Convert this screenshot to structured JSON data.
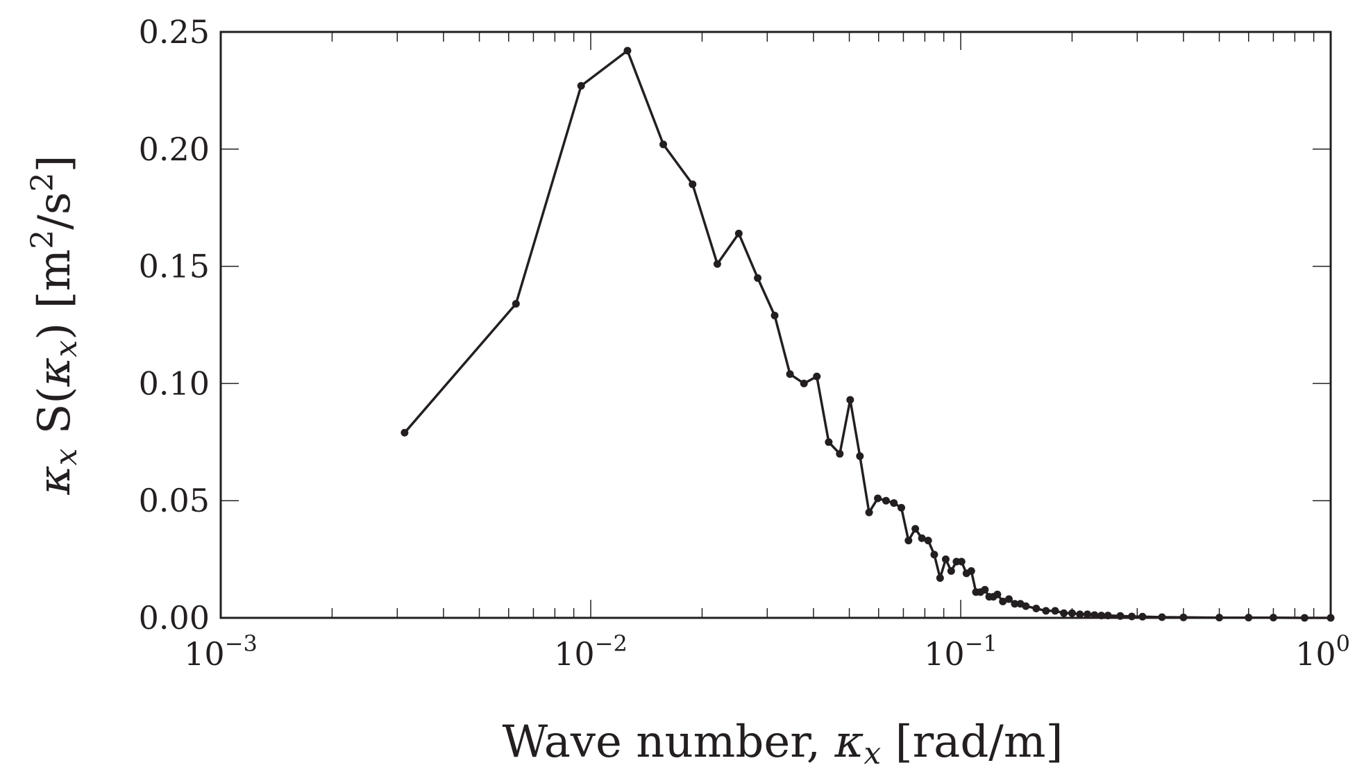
{
  "chart_data": {
    "type": "line",
    "x_scale": "log",
    "xlim": [
      0.001,
      1
    ],
    "ylim": [
      0,
      0.25
    ],
    "xlabel": {
      "main": "Wave number, ",
      "symbol": "κ",
      "sub": "x",
      "unit": " [rad/m]"
    },
    "ylabel": {
      "sym1": "κ",
      "sub1": "x",
      "mid": " S(",
      "sym2": "κ",
      "sub2": "x",
      "unit": ") [m",
      "sup": "2",
      "unit2": "/s",
      "sup2": "2",
      "close": "]"
    },
    "x_ticks": [
      {
        "base": "10",
        "exp": "−3",
        "value": 0.001
      },
      {
        "base": "10",
        "exp": "−2",
        "value": 0.01
      },
      {
        "base": "10",
        "exp": "−1",
        "value": 0.1
      },
      {
        "base": "10",
        "exp": "0",
        "value": 1
      }
    ],
    "y_ticks": [
      {
        "label": "0.00",
        "value": 0.0
      },
      {
        "label": "0.05",
        "value": 0.05
      },
      {
        "label": "0.10",
        "value": 0.1
      },
      {
        "label": "0.15",
        "value": 0.15
      },
      {
        "label": "0.20",
        "value": 0.2
      },
      {
        "label": "0.25",
        "value": 0.25
      }
    ],
    "grid": false,
    "line_color": "#231f20",
    "series": [
      {
        "x": [
          0.00314,
          0.00628,
          0.00942,
          0.01257,
          0.01571,
          0.01885,
          0.02199,
          0.02513,
          0.02827,
          0.03142,
          0.03456,
          0.0377,
          0.04084,
          0.04398,
          0.04712,
          0.05027,
          0.05341,
          0.05655,
          0.05969,
          0.06283,
          0.06597,
          0.06912,
          0.07226,
          0.0754,
          0.07854,
          0.08168,
          0.08482,
          0.08796,
          0.09111,
          0.09425,
          0.09739,
          0.10053,
          0.10367,
          0.10681,
          0.10996,
          0.1131,
          0.11624,
          0.11938,
          0.12252,
          0.12566,
          0.13,
          0.135,
          0.14,
          0.145,
          0.15,
          0.16,
          0.17,
          0.18,
          0.19,
          0.2,
          0.21,
          0.22,
          0.23,
          0.24,
          0.25,
          0.27,
          0.29,
          0.31,
          0.35,
          0.4,
          0.5,
          0.6,
          0.7,
          0.85,
          1.0
        ],
        "y": [
          0.079,
          0.134,
          0.227,
          0.242,
          0.202,
          0.185,
          0.151,
          0.164,
          0.145,
          0.129,
          0.104,
          0.1,
          0.103,
          0.075,
          0.07,
          0.093,
          0.069,
          0.045,
          0.051,
          0.05,
          0.049,
          0.047,
          0.033,
          0.038,
          0.034,
          0.033,
          0.027,
          0.017,
          0.025,
          0.02,
          0.024,
          0.024,
          0.019,
          0.02,
          0.011,
          0.011,
          0.012,
          0.009,
          0.009,
          0.01,
          0.007,
          0.008,
          0.006,
          0.006,
          0.005,
          0.004,
          0.003,
          0.003,
          0.002,
          0.002,
          0.0015,
          0.0015,
          0.0012,
          0.001,
          0.001,
          0.0008,
          0.0006,
          0.0005,
          0.0003,
          0.0002,
          0.0001,
          0.0001,
          0.0001,
          0.0,
          0.0
        ]
      }
    ]
  }
}
